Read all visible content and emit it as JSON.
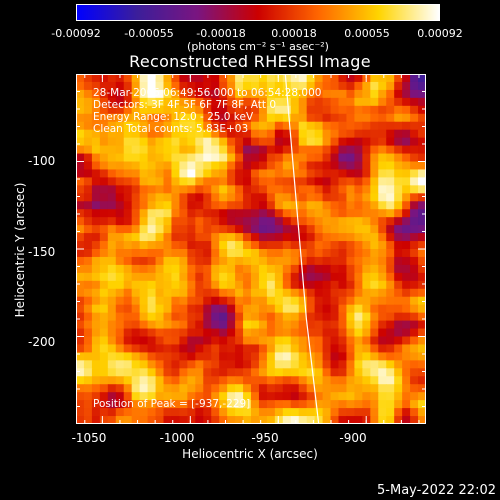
{
  "colorbar": {
    "ticks": [
      "-0.00092",
      "-0.00055",
      "-0.00018",
      "0.00018",
      "0.00055",
      "0.00092"
    ],
    "units": "(photons cm⁻² s⁻¹ asec⁻²)",
    "min": -0.00092,
    "max": 0.00092
  },
  "chart_data": {
    "type": "heatmap",
    "title": "Reconstructed RHESSI Image",
    "xlabel": "Heliocentric X (arcsec)",
    "ylabel": "Heliocentric Y (arcsec)",
    "xlim": [
      -1065,
      -866
    ],
    "ylim": [
      -250,
      -50
    ],
    "x_ticks": [
      "-1050",
      "-1000",
      "-950",
      "-900"
    ],
    "y_ticks": [
      "-100",
      "-150",
      "-200"
    ],
    "x_tick_values": [
      -1050,
      -1000,
      -950,
      -900
    ],
    "y_tick_values": [
      -100,
      -150,
      -200
    ],
    "limb": [
      [
        -946,
        -50
      ],
      [
        -940,
        -120
      ],
      [
        -934,
        -190
      ],
      [
        -927,
        -250
      ]
    ],
    "peak": [
      -937,
      -229
    ],
    "annotations": [
      "28-Mar-2006 06:49:56.000 to 06:54:28.000",
      "Detectors: 3F 4F 5F 6F 7F 8F, Att 0",
      "Energy Range: 12.0 - 25.0 keV",
      "Clean     Total counts: 5.83E+03"
    ],
    "peak_label": "Position of Peak = [-937,-229]"
  },
  "footer": "5-May-2022 22:02",
  "colors": {
    "colormap": [
      "#0000ff",
      "#3c1e9a",
      "#7a1580",
      "#cc0000",
      "#ff6600",
      "#ffd400",
      "#ffffff"
    ]
  }
}
